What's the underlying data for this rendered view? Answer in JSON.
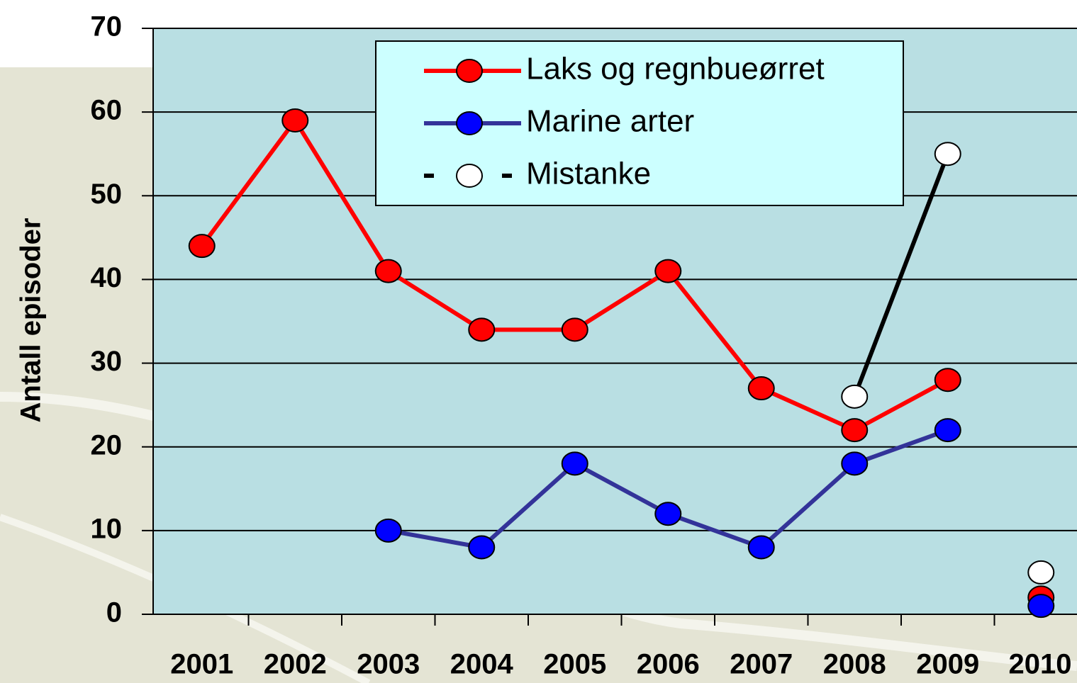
{
  "chart_data": {
    "type": "line",
    "y_label": "Antall episoder",
    "categories": [
      "2001",
      "2002",
      "2003",
      "2004",
      "2005",
      "2006",
      "2007",
      "2008",
      "2009",
      "2010"
    ],
    "series": [
      {
        "name": "Laks og regnbueørret",
        "color": "#ff0000",
        "marker_color": "#ff0000",
        "values": [
          44,
          59,
          41,
          34,
          34,
          41,
          27,
          22,
          28,
          2
        ]
      },
      {
        "name": "Marine arter",
        "color": "#333399",
        "marker_color": "#0000ff",
        "values": [
          null,
          null,
          10,
          8,
          18,
          12,
          8,
          18,
          22,
          1
        ]
      },
      {
        "name": "Mistanke",
        "color": "#000000",
        "marker_color": "#ffffff",
        "dashed_legend": true,
        "values": [
          null,
          null,
          null,
          null,
          null,
          null,
          null,
          26,
          55,
          5
        ]
      }
    ],
    "line_break_before": 9,
    "ylim": [
      0,
      70
    ],
    "yticks": [
      0,
      10,
      20,
      30,
      40,
      50,
      60,
      70
    ],
    "grid": true,
    "plot_background": "#b9dfe3",
    "legend_background": "#ccffff"
  }
}
